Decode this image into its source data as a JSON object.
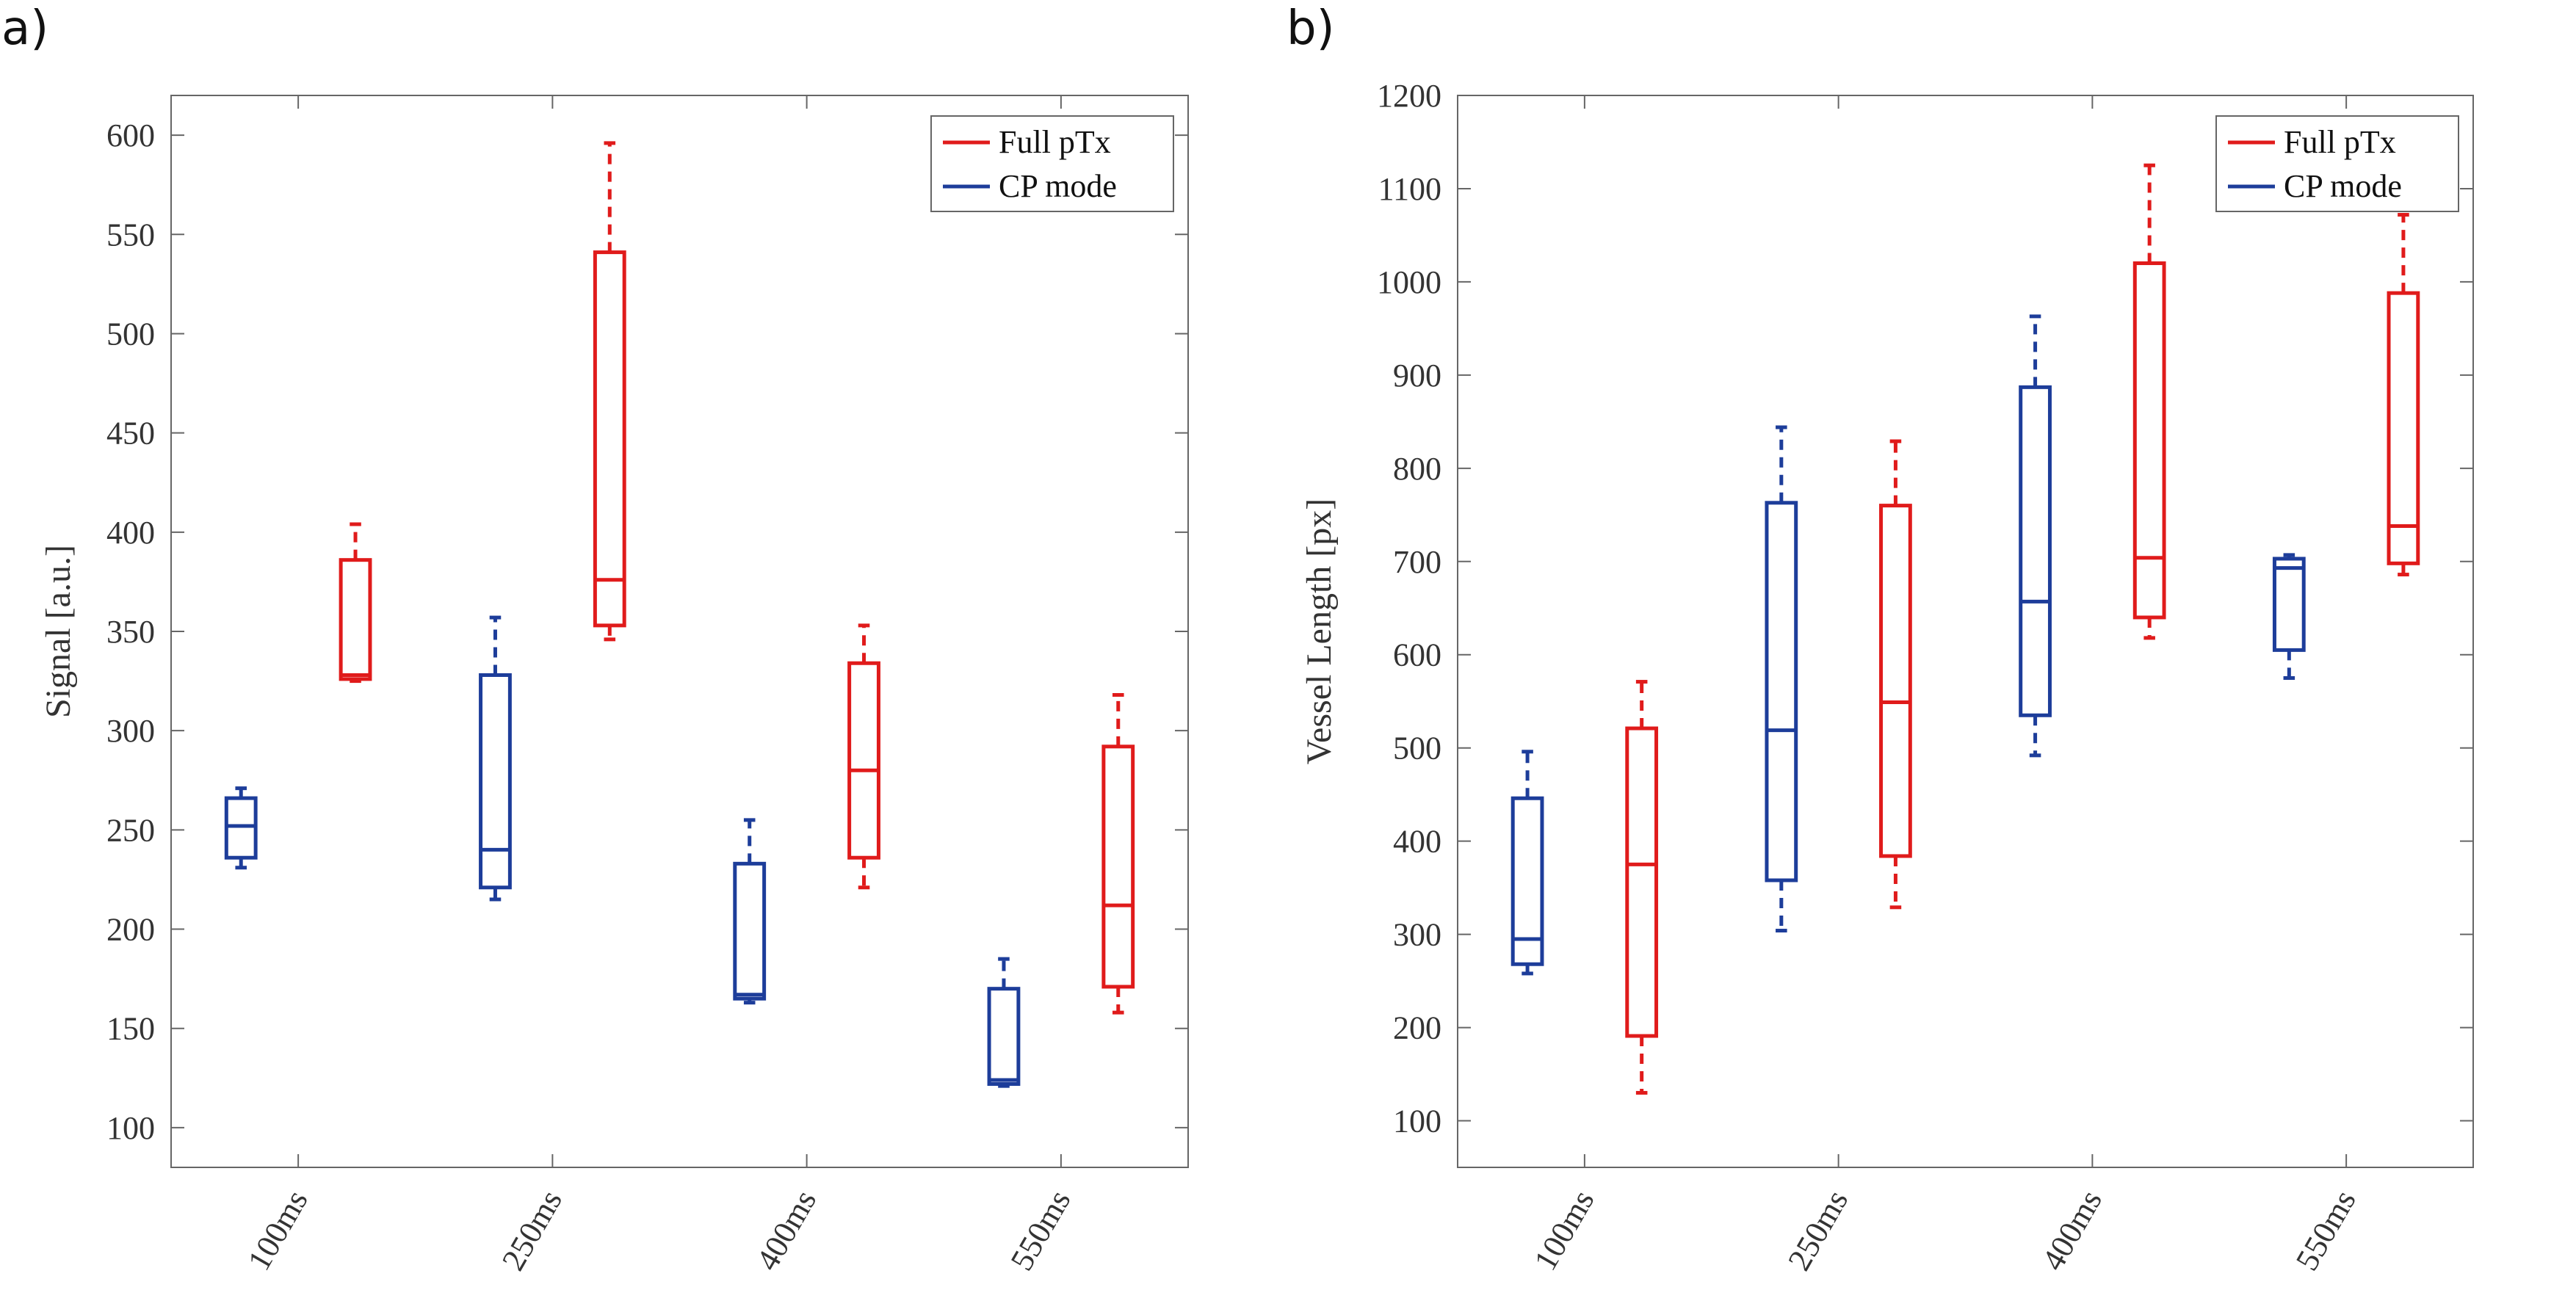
{
  "figure": {
    "colors": {
      "full_ptx": "#e01b1b",
      "cp_mode": "#1d3d9a",
      "axis": "#666666",
      "text": "#333333"
    }
  },
  "chart_data": [
    {
      "panel_label": "a)",
      "type": "box",
      "title": "",
      "xlabel": "",
      "ylabel": "Signal [a.u.]",
      "ylim": [
        80,
        620
      ],
      "yticks": [
        100,
        150,
        200,
        250,
        300,
        350,
        400,
        450,
        500,
        550,
        600
      ],
      "ytick_labels": [
        "100",
        "150",
        "200",
        "250",
        "300",
        "350",
        "400",
        "450",
        "500",
        "550",
        "600"
      ],
      "categories": [
        "100ms",
        "250ms",
        "400ms",
        "550ms"
      ],
      "legend": {
        "position": "top-right",
        "entries": [
          "Full pTx",
          "CP mode"
        ]
      },
      "series": [
        {
          "name": "CP mode",
          "color": "#1d3d9a",
          "boxes": [
            {
              "category": "100ms",
              "whisker_low": 231,
              "q1": 236,
              "median": 252,
              "q3": 266,
              "whisker_high": 271
            },
            {
              "category": "250ms",
              "whisker_low": 215,
              "q1": 221,
              "median": 240,
              "q3": 328,
              "whisker_high": 357
            },
            {
              "category": "400ms",
              "whisker_low": 163,
              "q1": 165,
              "median": 167,
              "q3": 233,
              "whisker_high": 255
            },
            {
              "category": "550ms",
              "whisker_low": 121,
              "q1": 122,
              "median": 124,
              "q3": 170,
              "whisker_high": 185
            }
          ]
        },
        {
          "name": "Full pTx",
          "color": "#e01b1b",
          "boxes": [
            {
              "category": "100ms",
              "whisker_low": 325,
              "q1": 326,
              "median": 328,
              "q3": 386,
              "whisker_high": 404
            },
            {
              "category": "250ms",
              "whisker_low": 346,
              "q1": 353,
              "median": 376,
              "q3": 541,
              "whisker_high": 596
            },
            {
              "category": "400ms",
              "whisker_low": 221,
              "q1": 236,
              "median": 280,
              "q3": 334,
              "whisker_high": 353
            },
            {
              "category": "550ms",
              "whisker_low": 158,
              "q1": 171,
              "median": 212,
              "q3": 292,
              "whisker_high": 318
            }
          ]
        }
      ]
    },
    {
      "panel_label": "b)",
      "type": "box",
      "title": "",
      "xlabel": "",
      "ylabel": "Vessel Length [px]",
      "ylim": [
        50,
        1200
      ],
      "yticks": [
        100,
        200,
        300,
        400,
        500,
        600,
        700,
        800,
        900,
        1000,
        1100,
        1200
      ],
      "ytick_labels": [
        "100",
        "200",
        "300",
        "400",
        "500",
        "600",
        "700",
        "800",
        "900",
        "1000",
        "1100",
        "1200"
      ],
      "categories": [
        "100ms",
        "250ms",
        "400ms",
        "550ms"
      ],
      "legend": {
        "position": "top-right",
        "entries": [
          "Full pTx",
          "CP mode"
        ]
      },
      "series": [
        {
          "name": "CP mode",
          "color": "#1d3d9a",
          "boxes": [
            {
              "category": "100ms",
              "whisker_low": 258,
              "q1": 268,
              "median": 295,
              "q3": 446,
              "whisker_high": 496
            },
            {
              "category": "250ms",
              "whisker_low": 304,
              "q1": 358,
              "median": 519,
              "q3": 763,
              "whisker_high": 844
            },
            {
              "category": "400ms",
              "whisker_low": 492,
              "q1": 535,
              "median": 657,
              "q3": 887,
              "whisker_high": 963
            },
            {
              "category": "550ms",
              "whisker_low": 575,
              "q1": 605,
              "median": 693,
              "q3": 703,
              "whisker_high": 707
            }
          ]
        },
        {
          "name": "Full pTx",
          "color": "#e01b1b",
          "boxes": [
            {
              "category": "100ms",
              "whisker_low": 130,
              "q1": 191,
              "median": 375,
              "q3": 521,
              "whisker_high": 571
            },
            {
              "category": "250ms",
              "whisker_low": 329,
              "q1": 384,
              "median": 549,
              "q3": 760,
              "whisker_high": 829
            },
            {
              "category": "400ms",
              "whisker_low": 618,
              "q1": 640,
              "median": 704,
              "q3": 1020,
              "whisker_high": 1125
            },
            {
              "category": "550ms",
              "whisker_low": 686,
              "q1": 698,
              "median": 738,
              "q3": 988,
              "whisker_high": 1072
            }
          ]
        }
      ]
    }
  ]
}
